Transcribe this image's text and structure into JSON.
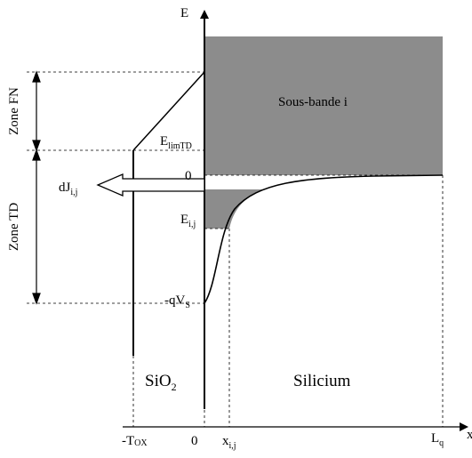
{
  "axis": {
    "y_label": "E",
    "x_label": "x"
  },
  "regions": {
    "subband": "Sous-bande i",
    "oxide": "SiO2",
    "silicon": "Silicium"
  },
  "zones": {
    "fn": "Zone FN",
    "td": "Zone TD"
  },
  "energy_labels": {
    "elim": {
      "main": "E",
      "sub": "limTD"
    },
    "zero": "0",
    "eij": {
      "main": "E",
      "sub": "i,j"
    },
    "qvs": {
      "main": "-qV",
      "sub": "S"
    }
  },
  "current_label": {
    "main": "dJ",
    "sub": "i,j"
  },
  "x_ticks": {
    "tox": {
      "main": "-T",
      "sub": "OX"
    },
    "zero": "0",
    "xij": {
      "main": "x",
      "sub": "i,j"
    },
    "lq": {
      "main": "L",
      "sub": "q"
    }
  },
  "colors": {
    "fill": "#8c8c8c",
    "line": "#000000",
    "background": "#ffffff"
  }
}
